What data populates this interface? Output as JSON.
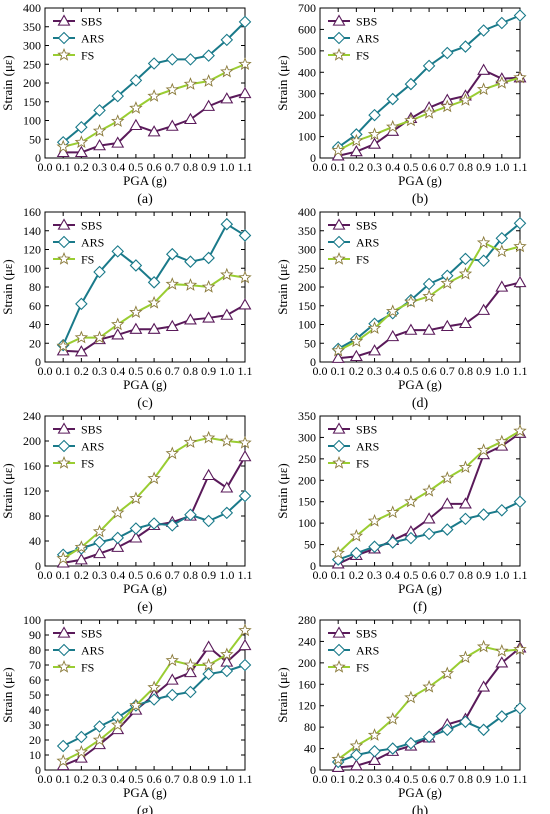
{
  "chart_data": [
    {
      "panel_label": "(a)",
      "type": "line",
      "x": [
        0.1,
        0.2,
        0.3,
        0.4,
        0.5,
        0.6,
        0.7,
        0.8,
        0.9,
        1.0,
        1.1
      ],
      "xlabel": "PGA (g)",
      "ylabel": "Strain (με)",
      "xlim": [
        0.0,
        1.1
      ],
      "xticks": [
        "0.0",
        "0.1",
        "0.2",
        "0.3",
        "0.4",
        "0.5",
        "0.6",
        "0.7",
        "0.8",
        "0.9",
        "1.0",
        "1.1"
      ],
      "ylim": [
        0,
        400
      ],
      "yticks": [
        "0",
        "50",
        "100",
        "150",
        "200",
        "250",
        "300",
        "350",
        "400"
      ],
      "legend_position": "top-left",
      "series": [
        {
          "name": "SBS",
          "color": "#5a1a5a",
          "marker": "triangle",
          "values": [
            15,
            15,
            33,
            40,
            87,
            70,
            85,
            103,
            138,
            158,
            172
          ]
        },
        {
          "name": "ARS",
          "color": "#1a7a8a",
          "marker": "diamond",
          "values": [
            42,
            82,
            127,
            165,
            207,
            252,
            263,
            263,
            273,
            315,
            363
          ]
        },
        {
          "name": "FS",
          "color": "#9acd32",
          "marker": "star",
          "values": [
            30,
            42,
            72,
            98,
            133,
            165,
            182,
            197,
            205,
            230,
            250
          ]
        }
      ]
    },
    {
      "panel_label": "(b)",
      "type": "line",
      "x": [
        0.1,
        0.2,
        0.3,
        0.4,
        0.5,
        0.6,
        0.7,
        0.8,
        0.9,
        1.0,
        1.1
      ],
      "xlabel": "PGA (g)",
      "ylabel": "Strain (με)",
      "xlim": [
        0.0,
        1.1
      ],
      "xticks": [
        "0.0",
        "0.1",
        "0.2",
        "0.3",
        "0.4",
        "0.5",
        "0.6",
        "0.7",
        "0.8",
        "0.9",
        "1.0",
        "1.1"
      ],
      "ylim": [
        0,
        700
      ],
      "yticks": [
        "0",
        "100",
        "200",
        "300",
        "400",
        "500",
        "600",
        "700"
      ],
      "legend_position": "top-left",
      "series": [
        {
          "name": "SBS",
          "color": "#5a1a5a",
          "marker": "triangle",
          "values": [
            10,
            30,
            65,
            125,
            185,
            235,
            270,
            290,
            410,
            370,
            375
          ]
        },
        {
          "name": "ARS",
          "color": "#1a7a8a",
          "marker": "diamond",
          "values": [
            50,
            110,
            200,
            275,
            345,
            430,
            490,
            520,
            595,
            630,
            665
          ]
        },
        {
          "name": "FS",
          "color": "#9acd32",
          "marker": "star",
          "values": [
            35,
            80,
            110,
            145,
            175,
            210,
            240,
            270,
            320,
            350,
            375
          ]
        }
      ]
    },
    {
      "panel_label": "(c)",
      "type": "line",
      "x": [
        0.1,
        0.2,
        0.3,
        0.4,
        0.5,
        0.6,
        0.7,
        0.8,
        0.9,
        1.0,
        1.1
      ],
      "xlabel": "PGA (g)",
      "ylabel": "Strain (με)",
      "xlim": [
        0.0,
        1.1
      ],
      "xticks": [
        "0.0",
        "0.1",
        "0.2",
        "0.3",
        "0.4",
        "0.5",
        "0.6",
        "0.7",
        "0.8",
        "0.9",
        "1.0",
        "1.1"
      ],
      "ylim": [
        0,
        160
      ],
      "yticks": [
        "0",
        "20",
        "40",
        "60",
        "80",
        "100",
        "120",
        "140",
        "160"
      ],
      "legend_position": "top-left",
      "series": [
        {
          "name": "SBS",
          "color": "#5a1a5a",
          "marker": "triangle",
          "values": [
            12,
            11,
            24,
            29,
            35,
            35,
            38,
            45,
            47,
            50,
            61
          ]
        },
        {
          "name": "ARS",
          "color": "#1a7a8a",
          "marker": "diamond",
          "values": [
            18,
            62,
            96,
            118,
            103,
            85,
            115,
            107,
            111,
            147,
            135
          ]
        },
        {
          "name": "FS",
          "color": "#9acd32",
          "marker": "star",
          "values": [
            17,
            26,
            26,
            40,
            53,
            63,
            83,
            82,
            80,
            93,
            90
          ]
        }
      ]
    },
    {
      "panel_label": "(d)",
      "type": "line",
      "x": [
        0.1,
        0.2,
        0.3,
        0.4,
        0.5,
        0.6,
        0.7,
        0.8,
        0.9,
        1.0,
        1.1
      ],
      "xlabel": "PGA (g)",
      "ylabel": "Strain (με)",
      "xlim": [
        0.0,
        1.1
      ],
      "xticks": [
        "0.0",
        "0.1",
        "0.2",
        "0.3",
        "0.4",
        "0.5",
        "0.6",
        "0.7",
        "0.8",
        "0.9",
        "1.0",
        "1.1"
      ],
      "ylim": [
        0,
        400
      ],
      "yticks": [
        "0",
        "50",
        "100",
        "150",
        "200",
        "250",
        "300",
        "350",
        "400"
      ],
      "legend_position": "top-left",
      "series": [
        {
          "name": "SBS",
          "color": "#5a1a5a",
          "marker": "triangle",
          "values": [
            10,
            15,
            30,
            68,
            85,
            85,
            95,
            103,
            138,
            200,
            212
          ]
        },
        {
          "name": "ARS",
          "color": "#1a7a8a",
          "marker": "diamond",
          "values": [
            35,
            62,
            102,
            130,
            165,
            208,
            230,
            275,
            270,
            330,
            370
          ]
        },
        {
          "name": "FS",
          "color": "#9acd32",
          "marker": "star",
          "values": [
            30,
            55,
            90,
            135,
            160,
            175,
            210,
            235,
            318,
            295,
            308
          ]
        }
      ]
    },
    {
      "panel_label": "(e)",
      "type": "line",
      "x": [
        0.1,
        0.2,
        0.3,
        0.4,
        0.5,
        0.6,
        0.7,
        0.8,
        0.9,
        1.0,
        1.1
      ],
      "xlabel": "PGA (g)",
      "ylabel": "Strain (με)",
      "xlim": [
        0.0,
        1.1
      ],
      "xticks": [
        "0.0",
        "0.1",
        "0.2",
        "0.3",
        "0.4",
        "0.5",
        "0.6",
        "0.7",
        "0.8",
        "0.9",
        "1.0",
        "1.1"
      ],
      "ylim": [
        0,
        240
      ],
      "yticks": [
        "0",
        "40",
        "80",
        "120",
        "160",
        "200",
        "240"
      ],
      "legend_position": "top-left",
      "series": [
        {
          "name": "SBS",
          "color": "#5a1a5a",
          "marker": "triangle",
          "values": [
            5,
            10,
            20,
            30,
            45,
            65,
            70,
            80,
            145,
            125,
            175
          ]
        },
        {
          "name": "ARS",
          "color": "#1a7a8a",
          "marker": "diamond",
          "values": [
            18,
            28,
            38,
            45,
            60,
            68,
            65,
            82,
            72,
            85,
            112
          ]
        },
        {
          "name": "FS",
          "color": "#9acd32",
          "marker": "star",
          "values": [
            12,
            30,
            55,
            85,
            108,
            140,
            180,
            198,
            205,
            200,
            197
          ]
        }
      ]
    },
    {
      "panel_label": "(f)",
      "type": "line",
      "x": [
        0.1,
        0.2,
        0.3,
        0.4,
        0.5,
        0.6,
        0.7,
        0.8,
        0.9,
        1.0,
        1.1
      ],
      "xlabel": "PGA (g)",
      "ylabel": "Strain (με)",
      "xlim": [
        0.0,
        1.1
      ],
      "xticks": [
        "0.0",
        "0.1",
        "0.2",
        "0.3",
        "0.4",
        "0.5",
        "0.6",
        "0.7",
        "0.8",
        "0.9",
        "1.0",
        "1.1"
      ],
      "ylim": [
        0,
        350
      ],
      "yticks": [
        "0",
        "50",
        "100",
        "150",
        "200",
        "250",
        "300",
        "350"
      ],
      "legend_position": "top-left",
      "series": [
        {
          "name": "SBS",
          "color": "#5a1a5a",
          "marker": "triangle",
          "values": [
            5,
            25,
            40,
            60,
            80,
            110,
            145,
            145,
            260,
            280,
            310
          ]
        },
        {
          "name": "ARS",
          "color": "#1a7a8a",
          "marker": "diamond",
          "values": [
            15,
            30,
            45,
            55,
            65,
            75,
            85,
            110,
            120,
            130,
            150
          ]
        },
        {
          "name": "FS",
          "color": "#9acd32",
          "marker": "star",
          "values": [
            30,
            70,
            105,
            125,
            150,
            175,
            205,
            230,
            270,
            290,
            315
          ]
        }
      ]
    },
    {
      "panel_label": "(g)",
      "type": "line",
      "x": [
        0.1,
        0.2,
        0.3,
        0.4,
        0.5,
        0.6,
        0.7,
        0.8,
        0.9,
        1.0,
        1.1
      ],
      "xlabel": "PGA (g)",
      "ylabel": "Strain (με)",
      "xlim": [
        0.0,
        1.1
      ],
      "xticks": [
        "0.0",
        "0.1",
        "0.2",
        "0.3",
        "0.4",
        "0.5",
        "0.6",
        "0.7",
        "0.8",
        "0.9",
        "1.0",
        "1.1"
      ],
      "ylim": [
        0,
        100
      ],
      "yticks": [
        "0",
        "10",
        "20",
        "30",
        "40",
        "50",
        "60",
        "70",
        "80",
        "90",
        "100"
      ],
      "legend_position": "top-left",
      "series": [
        {
          "name": "SBS",
          "color": "#5a1a5a",
          "marker": "triangle",
          "values": [
            3,
            8,
            17,
            27,
            40,
            50,
            60,
            65,
            82,
            72,
            83
          ]
        },
        {
          "name": "ARS",
          "color": "#1a7a8a",
          "marker": "diamond",
          "values": [
            16,
            22,
            29,
            35,
            43,
            47,
            50,
            52,
            64,
            66,
            70
          ]
        },
        {
          "name": "FS",
          "color": "#9acd32",
          "marker": "star",
          "values": [
            6,
            12,
            20,
            30,
            43,
            55,
            73,
            70,
            70,
            77,
            93
          ]
        }
      ]
    },
    {
      "panel_label": "(h)",
      "type": "line",
      "x": [
        0.1,
        0.2,
        0.3,
        0.4,
        0.5,
        0.6,
        0.7,
        0.8,
        0.9,
        1.0,
        1.1
      ],
      "xlabel": "PGA (g)",
      "ylabel": "Strain (με)",
      "xlim": [
        0.0,
        1.1
      ],
      "xticks": [
        "0.0",
        "0.1",
        "0.2",
        "0.3",
        "0.4",
        "0.5",
        "0.6",
        "0.7",
        "0.8",
        "0.9",
        "1.0",
        "1.1"
      ],
      "ylim": [
        0,
        280
      ],
      "yticks": [
        "0",
        "40",
        "80",
        "120",
        "160",
        "200",
        "240",
        "280"
      ],
      "legend_position": "top-left",
      "series": [
        {
          "name": "SBS",
          "color": "#5a1a5a",
          "marker": "triangle",
          "values": [
            5,
            8,
            18,
            35,
            45,
            60,
            85,
            95,
            155,
            200,
            228
          ]
        },
        {
          "name": "ARS",
          "color": "#1a7a8a",
          "marker": "diamond",
          "values": [
            15,
            28,
            35,
            40,
            50,
            62,
            75,
            90,
            75,
            100,
            115
          ]
        },
        {
          "name": "FS",
          "color": "#9acd32",
          "marker": "star",
          "values": [
            20,
            45,
            65,
            95,
            135,
            155,
            180,
            210,
            230,
            222,
            225
          ]
        }
      ]
    }
  ]
}
